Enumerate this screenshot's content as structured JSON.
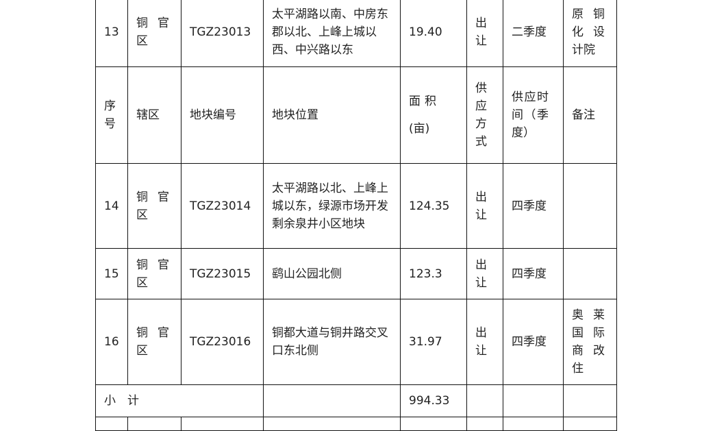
{
  "header": {
    "no": "序号",
    "district": "辖区",
    "code": "地块编号",
    "location": "地块位置",
    "area": "面积(亩)",
    "supply_method": "供应方式",
    "supply_time": "供应时间（季度）",
    "remark": "备注"
  },
  "rows": [
    {
      "no": "13",
      "district": "铜官区",
      "code": "TGZ23013",
      "location": "太平湖路以南、中房东郡以北、上峰上城以西、中兴路以东",
      "area": "19.40",
      "method": "出让",
      "time": "二季度",
      "remark": "原铜化设计院"
    },
    {
      "no": "14",
      "district": "铜官区",
      "code": "TGZ23014",
      "location": "太平湖路以北、上峰上城以东，绿源市场开发剩余泉井小区地块",
      "area": "124.35",
      "method": "出让",
      "time": "四季度",
      "remark": ""
    },
    {
      "no": "15",
      "district": "铜官区",
      "code": "TGZ23015",
      "location": "鹞山公园北侧",
      "area": "123.3",
      "method": "出让",
      "time": "四季度",
      "remark": ""
    },
    {
      "no": "16",
      "district": "铜官区",
      "code": "TGZ23016",
      "location": "铜都大道与铜井路交叉口东北侧",
      "area": "31.97",
      "method": "出让",
      "time": "四季度",
      "remark": "奥莱国际商改住"
    }
  ],
  "subtotal": {
    "label": "小　计",
    "area": "994.33"
  }
}
